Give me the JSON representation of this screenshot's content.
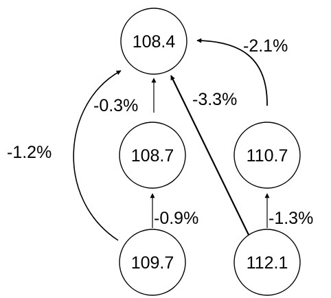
{
  "nodes": {
    "top": "108.4",
    "mid_left": "108.7",
    "mid_right": "110.7",
    "bottom_left": "109.7",
    "bottom_right": "112.1"
  },
  "edges": {
    "bottom_left_to_top": "-1.2%",
    "mid_left_to_top": "-0.3%",
    "bottom_right_to_top": "-3.3%",
    "mid_right_to_top": "-2.1%",
    "bottom_left_to_mid_left": "-0.9%",
    "bottom_right_to_mid_right": "-1.3%"
  }
}
